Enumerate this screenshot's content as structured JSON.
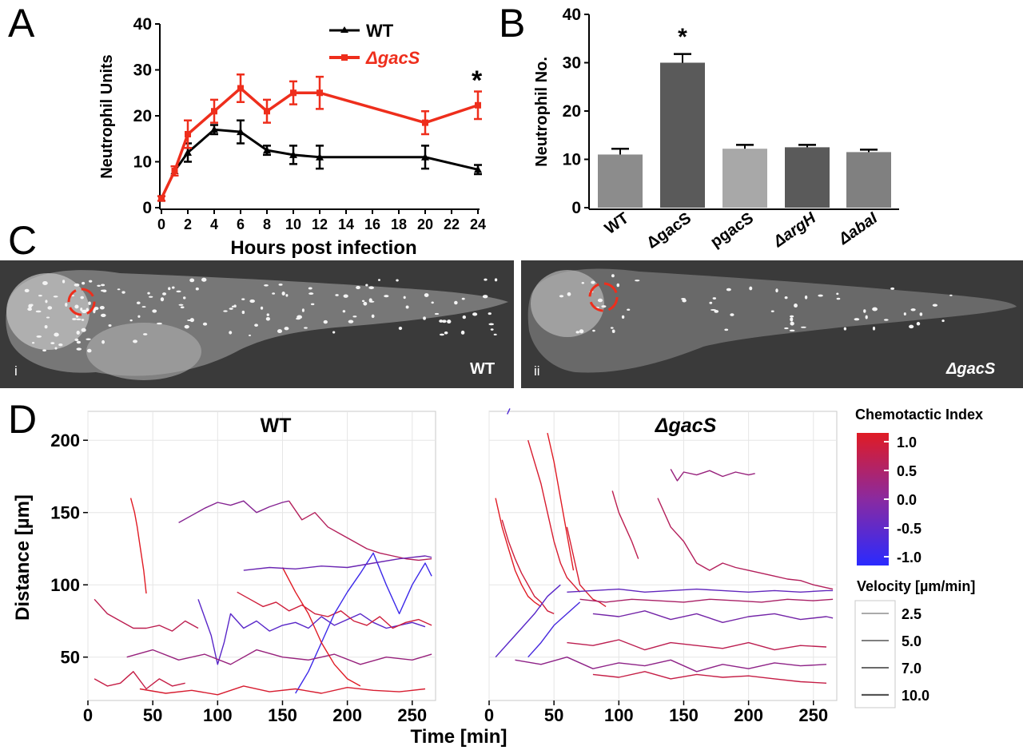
{
  "panels": {
    "A": {
      "label": "A"
    },
    "B": {
      "label": "B"
    },
    "C": {
      "label": "C",
      "image_i_index": "i",
      "image_i_label": "WT",
      "image_ii_index": "ii",
      "image_ii_label": "ΔgacS"
    },
    "D": {
      "label": "D"
    }
  },
  "colors": {
    "wt": "#000000",
    "gacs": "#ee2e1c",
    "bar_light": "#8c8c8c",
    "bar_dark": "#5a5a5a",
    "bar_lighter": "#a8a8a8",
    "ci_pos": "#e01b24",
    "ci_neg": "#2a2aff",
    "image_bg": "#3a3a3a"
  },
  "chart_data": [
    {
      "panel": "A",
      "type": "line",
      "xlabel": "Hours post infection",
      "ylabel": "Neutrophil Units",
      "xlim": [
        0,
        24
      ],
      "ylim": [
        0,
        40
      ],
      "xticks": [
        0,
        2,
        4,
        6,
        8,
        10,
        12,
        14,
        16,
        18,
        20,
        22,
        24
      ],
      "yticks": [
        0,
        10,
        20,
        30,
        40
      ],
      "legend_position": "top-right",
      "annotation": "*",
      "series": [
        {
          "name": "WT",
          "color": "#000000",
          "x": [
            0,
            1,
            2,
            4,
            6,
            8,
            10,
            12,
            20,
            24
          ],
          "y": [
            2,
            8,
            12,
            17,
            16.5,
            12.5,
            11.5,
            11,
            11,
            8.3
          ],
          "err": [
            0.5,
            1,
            2,
            1,
            2.5,
            1,
            2,
            2.5,
            2.5,
            1
          ]
        },
        {
          "name": "ΔgacS",
          "color": "#ee2e1c",
          "x": [
            0,
            1,
            2,
            4,
            6,
            8,
            10,
            12,
            20,
            24
          ],
          "y": [
            2,
            8,
            16,
            21,
            26,
            21,
            25,
            25,
            18.5,
            22.3
          ],
          "err": [
            0.5,
            1,
            3,
            2.5,
            3,
            2.5,
            2.5,
            3.5,
            2.5,
            3
          ]
        }
      ]
    },
    {
      "panel": "B",
      "type": "bar",
      "ylabel": "Neutrophil No.",
      "ylim": [
        0,
        40
      ],
      "yticks": [
        0,
        10,
        20,
        30,
        40
      ],
      "categories": [
        "WT",
        "ΔgacS",
        "pgacS",
        "ΔargH",
        "ΔabaI"
      ],
      "values": [
        11,
        30,
        12.2,
        12.5,
        11.5
      ],
      "err": [
        1.2,
        1.8,
        0.8,
        0.5,
        0.5
      ],
      "bar_colors": [
        "#8c8c8c",
        "#5a5a5a",
        "#a8a8a8",
        "#5a5a5a",
        "#808080"
      ],
      "annotation": "*"
    },
    {
      "panel": "D",
      "type": "line",
      "xlabel": "Time [min]",
      "ylabel": "Distance [µm]",
      "xlim": [
        0,
        268
      ],
      "ylim": [
        20,
        220
      ],
      "xticks": [
        0,
        50,
        100,
        150,
        200,
        250
      ],
      "yticks": [
        50,
        100,
        150,
        200
      ],
      "subplots": [
        {
          "title": "WT",
          "tracks": [
            {
              "ci": 1.0,
              "x": [
                33,
                36,
                38,
                40,
                43,
                45
              ],
              "y": [
                160,
                150,
                140,
                128,
                110,
                94
              ]
            },
            {
              "ci": 0.0,
              "x": [
                70,
                80,
                90,
                100,
                110,
                120,
                130,
                140,
                150,
                155
              ],
              "y": [
                143,
                148,
                153,
                157,
                155,
                158,
                150,
                154,
                157,
                158
              ]
            },
            {
              "ci": 0.5,
              "x": [
                155,
                165,
                175,
                185,
                195,
                205,
                215,
                225,
                235,
                245,
                255,
                265
              ],
              "y": [
                158,
                145,
                150,
                140,
                135,
                130,
                125,
                122,
                120,
                118,
                117,
                118
              ]
            },
            {
              "ci": 0.6,
              "x": [
                5,
                15,
                25,
                35,
                45,
                55,
                65,
                75,
                85
              ],
              "y": [
                90,
                80,
                75,
                70,
                70,
                72,
                68,
                75,
                70
              ]
            },
            {
              "ci": 0.7,
              "x": [
                5,
                15,
                25,
                35,
                45,
                55,
                65,
                75
              ],
              "y": [
                35,
                30,
                32,
                40,
                28,
                35,
                30,
                32
              ]
            },
            {
              "ci": -0.5,
              "x": [
                85,
                95,
                100,
                105,
                110,
                120,
                130,
                140,
                150,
                160,
                170,
                180,
                190,
                200,
                210,
                220,
                230,
                240,
                250,
                260
              ],
              "y": [
                90,
                65,
                45,
                60,
                80,
                70,
                75,
                68,
                72,
                74,
                70,
                78,
                72,
                76,
                80,
                74,
                70,
                72,
                74,
                71
              ]
            },
            {
              "ci": 0.8,
              "x": [
                115,
                125,
                135,
                145,
                155,
                165,
                175,
                185,
                195,
                205,
                215,
                225,
                235,
                245,
                255,
                265
              ],
              "y": [
                95,
                90,
                85,
                88,
                82,
                86,
                80,
                78,
                82,
                75,
                72,
                78,
                70,
                74,
                76,
                72
              ]
            },
            {
              "ci": -0.8,
              "x": [
                160,
                170,
                180,
                190,
                200,
                210,
                220,
                230,
                240,
                250,
                260,
                265
              ],
              "y": [
                25,
                40,
                60,
                80,
                95,
                108,
                122,
                100,
                80,
                100,
                115,
                106
              ]
            },
            {
              "ci": 0.2,
              "x": [
                30,
                50,
                70,
                90,
                110,
                130,
                150,
                170,
                190,
                210,
                230,
                250,
                265
              ],
              "y": [
                50,
                55,
                48,
                52,
                45,
                55,
                50,
                48,
                52,
                45,
                50,
                48,
                52
              ]
            },
            {
              "ci": 0.9,
              "x": [
                40,
                60,
                80,
                100,
                120,
                140,
                160,
                180,
                200,
                220,
                240,
                260
              ],
              "y": [
                28,
                25,
                27,
                24,
                30,
                26,
                28,
                25,
                29,
                27,
                26,
                28
              ]
            },
            {
              "ci": 1.0,
              "x": [
                150,
                160,
                170,
                180,
                190,
                200,
                210
              ],
              "y": [
                112,
                95,
                80,
                60,
                45,
                35,
                30
              ]
            },
            {
              "ci": -0.3,
              "x": [
                120,
                140,
                160,
                180,
                200,
                220,
                240,
                260,
                265
              ],
              "y": [
                110,
                112,
                111,
                113,
                112,
                115,
                118,
                120,
                119
              ]
            }
          ]
        },
        {
          "title": "ΔgacS",
          "tracks": [
            {
              "ci": -0.6,
              "x": [
                14,
                16
              ],
              "y": [
                218,
                222
              ]
            },
            {
              "ci": 0.9,
              "x": [
                30,
                35,
                40,
                45,
                50,
                55,
                60,
                65,
                70
              ],
              "y": [
                200,
                185,
                170,
                150,
                130,
                115,
                105,
                100,
                95
              ]
            },
            {
              "ci": 1.0,
              "x": [
                45,
                50,
                55,
                60,
                65
              ],
              "y": [
                205,
                185,
                160,
                135,
                110
              ]
            },
            {
              "ci": 1.0,
              "x": [
                5,
                10,
                15,
                20,
                25,
                30,
                35,
                40
              ],
              "y": [
                160,
                140,
                125,
                110,
                100,
                92,
                88,
                85
              ]
            },
            {
              "ci": 0.8,
              "x": [
                10,
                15,
                20,
                25,
                30,
                35,
                40,
                45,
                50
              ],
              "y": [
                145,
                130,
                118,
                108,
                100,
                92,
                88,
                82,
                80
              ]
            },
            {
              "ci": 0.9,
              "x": [
                60,
                65,
                70,
                75,
                80,
                85,
                90
              ],
              "y": [
                140,
                120,
                100,
                95,
                90,
                88,
                85
              ]
            },
            {
              "ci": -0.5,
              "x": [
                5,
                15,
                25,
                35,
                45,
                55
              ],
              "y": [
                50,
                60,
                70,
                80,
                92,
                100
              ]
            },
            {
              "ci": 0.2,
              "x": [
                140,
                145,
                150,
                160,
                170,
                180,
                190,
                200,
                205
              ],
              "y": [
                180,
                172,
                178,
                176,
                179,
                175,
                178,
                176,
                177
              ]
            },
            {
              "ci": 0.6,
              "x": [
                95,
                100,
                105,
                110,
                115
              ],
              "y": [
                165,
                150,
                140,
                130,
                118
              ]
            },
            {
              "ci": 0.5,
              "x": [
                130,
                140,
                150,
                160,
                170,
                180,
                190,
                200,
                210,
                220,
                230,
                240,
                250,
                260,
                265
              ],
              "y": [
                160,
                140,
                130,
                115,
                110,
                115,
                112,
                110,
                108,
                106,
                104,
                103,
                100,
                98,
                97
              ]
            },
            {
              "ci": -0.4,
              "x": [
                60,
                80,
                100,
                120,
                140,
                160,
                180,
                200,
                220,
                240,
                260,
                265
              ],
              "y": [
                95,
                96,
                97,
                95,
                96,
                97,
                96,
                95,
                96,
                95,
                96,
                96
              ]
            },
            {
              "ci": 0.4,
              "x": [
                70,
                90,
                110,
                130,
                150,
                170,
                190,
                210,
                230,
                250,
                265
              ],
              "y": [
                90,
                88,
                90,
                89,
                88,
                90,
                89,
                88,
                90,
                89,
                90
              ]
            },
            {
              "ci": -0.2,
              "x": [
                80,
                100,
                120,
                140,
                160,
                180,
                200,
                220,
                240,
                260,
                265
              ],
              "y": [
                80,
                78,
                82,
                76,
                80,
                74,
                78,
                80,
                76,
                78,
                77
              ]
            },
            {
              "ci": 0.6,
              "x": [
                60,
                80,
                100,
                120,
                140,
                160,
                180,
                200,
                220,
                240,
                260
              ],
              "y": [
                60,
                58,
                62,
                55,
                60,
                58,
                56,
                60,
                55,
                58,
                57
              ]
            },
            {
              "ci": 0.1,
              "x": [
                20,
                40,
                60,
                80,
                100,
                120,
                140,
                160,
                180,
                200,
                220,
                240,
                260
              ],
              "y": [
                48,
                45,
                50,
                42,
                46,
                44,
                48,
                40,
                45,
                42,
                46,
                44,
                45
              ]
            },
            {
              "ci": 0.7,
              "x": [
                80,
                100,
                120,
                140,
                160,
                180,
                200,
                220,
                240,
                260
              ],
              "y": [
                38,
                36,
                40,
                35,
                38,
                36,
                37,
                35,
                33,
                32
              ]
            },
            {
              "ci": -0.7,
              "x": [
                30,
                40,
                50,
                60,
                70
              ],
              "y": [
                50,
                60,
                72,
                80,
                88
              ]
            }
          ]
        }
      ],
      "colorbar": {
        "title": "Chemotactic Index",
        "ticks": [
          "1.0",
          "0.5",
          "0.0",
          "-0.5",
          "-1.0"
        ]
      },
      "velocity_legend": {
        "title": "Velocity [µm/min]",
        "entries": [
          "2.5",
          "5.0",
          "7.0",
          "10.0"
        ]
      }
    }
  ]
}
